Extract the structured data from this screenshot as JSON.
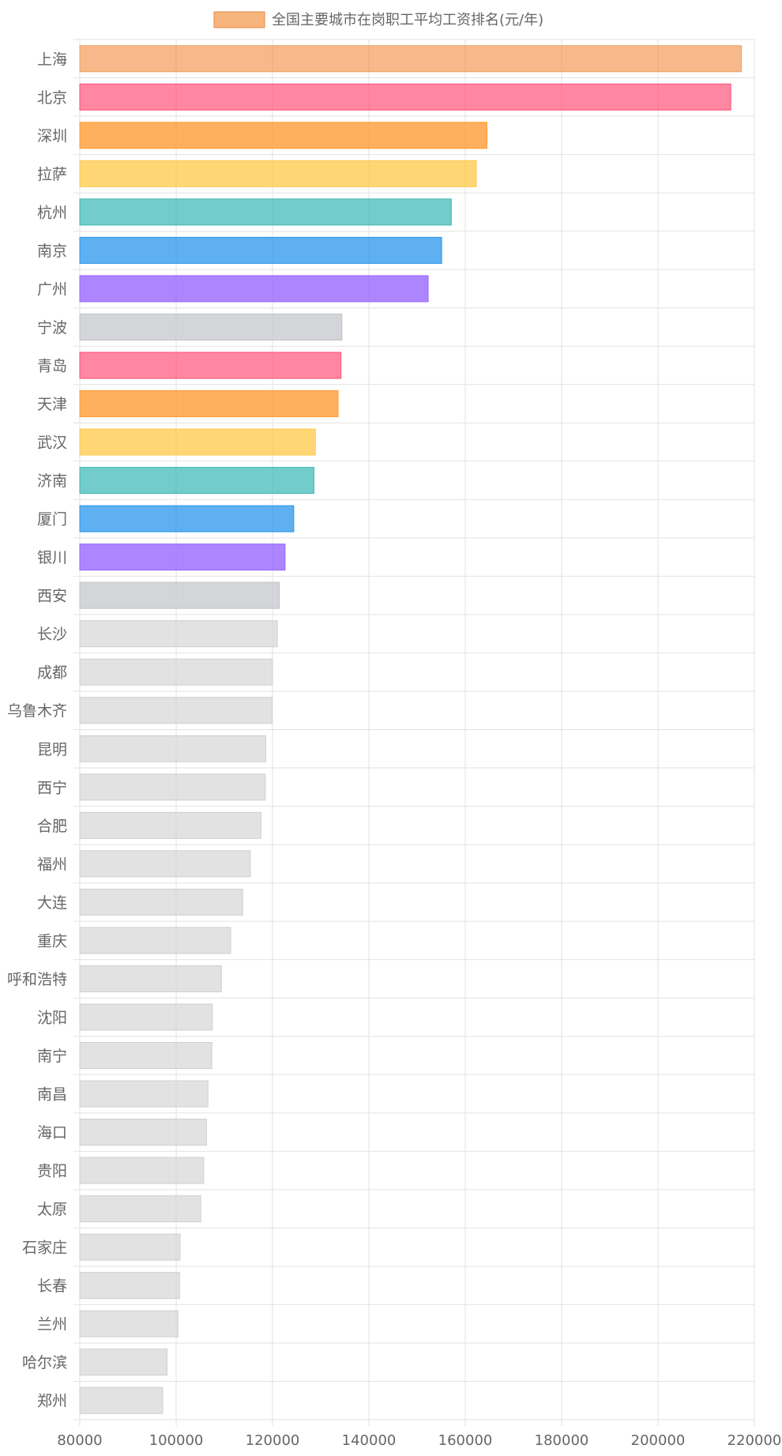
{
  "chart_data": {
    "type": "bar",
    "orientation": "horizontal",
    "legend": {
      "label": "全国主要城市在岗职工平均工资排名(元/年)",
      "position": "top",
      "swatch_color": "#f7b47c"
    },
    "grid": true,
    "xlim": [
      80000,
      220000
    ],
    "x_ticks": [
      "80000",
      "100000",
      "120000",
      "140000",
      "160000",
      "180000",
      "200000",
      "220000"
    ],
    "categories": [
      "上海",
      "北京",
      "深圳",
      "拉萨",
      "杭州",
      "南京",
      "广州",
      "宁波",
      "青岛",
      "天津",
      "武汉",
      "济南",
      "厦门",
      "银川",
      "西安",
      "长沙",
      "成都",
      "乌鲁木齐",
      "昆明",
      "西宁",
      "合肥",
      "福州",
      "大连",
      "重庆",
      "呼和浩特",
      "沈阳",
      "南宁",
      "南昌",
      "海口",
      "贵阳",
      "太原",
      "石家庄",
      "长春",
      "兰州",
      "哈尔滨",
      "郑州"
    ],
    "series": [
      {
        "values": [
          217300,
          215100,
          164500,
          162300,
          157100,
          155100,
          152300,
          134400,
          134200,
          133600,
          128900,
          128600,
          124400,
          122600,
          121400,
          121000,
          120000,
          119900,
          118600,
          118500,
          117600,
          115400,
          113800,
          111300,
          109400,
          107500,
          107400,
          106600,
          106300,
          105700,
          105100,
          100800,
          100700,
          100400,
          98100,
          97200
        ]
      }
    ],
    "bar_fill_colors": [
      "rgba(240,128,40,0.55)",
      "rgba(255,70,110,0.65)",
      "rgba(255,150,40,0.75)",
      "rgba(255,200,70,0.75)",
      "rgba(60,185,180,0.72)",
      "rgba(40,150,235,0.75)",
      "rgba(150,100,255,0.78)",
      "rgba(200,202,206,0.8)",
      "rgba(255,70,110,0.65)",
      "rgba(255,150,40,0.75)",
      "rgba(255,200,70,0.75)",
      "rgba(60,185,180,0.72)",
      "rgba(40,150,235,0.75)",
      "rgba(150,100,255,0.78)",
      "rgba(200,202,206,0.8)",
      "rgba(214,214,214,0.7)",
      "rgba(214,214,214,0.7)",
      "rgba(214,214,214,0.7)",
      "rgba(214,214,214,0.7)",
      "rgba(214,214,214,0.7)",
      "rgba(214,214,214,0.7)",
      "rgba(214,214,214,0.7)",
      "rgba(214,214,214,0.7)",
      "rgba(214,214,214,0.7)",
      "rgba(214,214,214,0.7)",
      "rgba(214,214,214,0.7)",
      "rgba(214,214,214,0.7)",
      "rgba(214,214,214,0.7)",
      "rgba(214,214,214,0.7)",
      "rgba(214,214,214,0.7)",
      "rgba(214,214,214,0.7)",
      "rgba(214,214,214,0.7)",
      "rgba(214,214,214,0.7)",
      "rgba(214,214,214,0.7)",
      "rgba(214,214,214,0.7)",
      "rgba(214,214,214,0.7)"
    ],
    "bar_border_colors": [
      "#f0a060",
      "#ff4d7a",
      "#ff9a30",
      "#ffc850",
      "#3cb9b4",
      "#2896eb",
      "#9664ff",
      "#c0c2c6",
      "#ff4d7a",
      "#ff9a30",
      "#ffc850",
      "#3cb9b4",
      "#2896eb",
      "#9664ff",
      "#c0c2c6",
      "#cfcfcf",
      "#cfcfcf",
      "#cfcfcf",
      "#cfcfcf",
      "#cfcfcf",
      "#cfcfcf",
      "#cfcfcf",
      "#cfcfcf",
      "#cfcfcf",
      "#cfcfcf",
      "#cfcfcf",
      "#cfcfcf",
      "#cfcfcf",
      "#cfcfcf",
      "#cfcfcf",
      "#cfcfcf",
      "#cfcfcf",
      "#cfcfcf",
      "#cfcfcf",
      "#cfcfcf",
      "#cfcfcf"
    ]
  }
}
